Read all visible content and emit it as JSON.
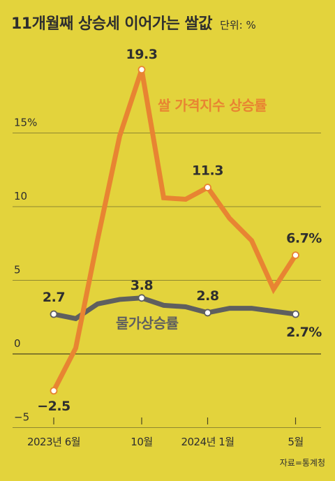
{
  "header": {
    "title": "11개월째 상승세 이어가는 쌀값",
    "unit": "단위: %"
  },
  "source": "자료=통계청",
  "chart_data": {
    "type": "line",
    "y_ticks": [
      {
        "value": 15,
        "label": "15%"
      },
      {
        "value": 10,
        "label": "10"
      },
      {
        "value": 5,
        "label": "5"
      },
      {
        "value": 0,
        "label": "0"
      },
      {
        "value": -5,
        "label": "−5"
      }
    ],
    "ylim": [
      -5,
      20
    ],
    "grid": true,
    "x_ticks": [
      {
        "index": 0,
        "label": "2023년 6월"
      },
      {
        "index": 4,
        "label": "10월"
      },
      {
        "index": 7,
        "label": "2024년 1월"
      },
      {
        "index": 11,
        "label": "5월"
      }
    ],
    "x_count": 12,
    "colors": {
      "rice": "#e88432",
      "cpi": "#5f5f5f",
      "grid": "#8f8730",
      "text": "#2e2e2e"
    },
    "series": [
      {
        "key": "rice",
        "name": "쌀 가격지수 상승률",
        "values": [
          -2.5,
          0.4,
          7.8,
          14.8,
          19.3,
          10.6,
          10.5,
          11.3,
          9.2,
          7.7,
          4.4,
          6.7
        ],
        "labeled": [
          {
            "index": 0,
            "label": "−2.5"
          },
          {
            "index": 4,
            "label": "19.3"
          },
          {
            "index": 7,
            "label": "11.3"
          },
          {
            "index": 11,
            "label": "6.7%"
          }
        ]
      },
      {
        "key": "cpi",
        "name": "물가상승률",
        "values": [
          2.7,
          2.4,
          3.4,
          3.7,
          3.8,
          3.3,
          3.2,
          2.8,
          3.1,
          3.1,
          2.9,
          2.7
        ],
        "labeled": [
          {
            "index": 0,
            "label": "2.7"
          },
          {
            "index": 4,
            "label": "3.8"
          },
          {
            "index": 7,
            "label": "2.8"
          },
          {
            "index": 11,
            "label": "2.7%"
          }
        ]
      }
    ]
  }
}
